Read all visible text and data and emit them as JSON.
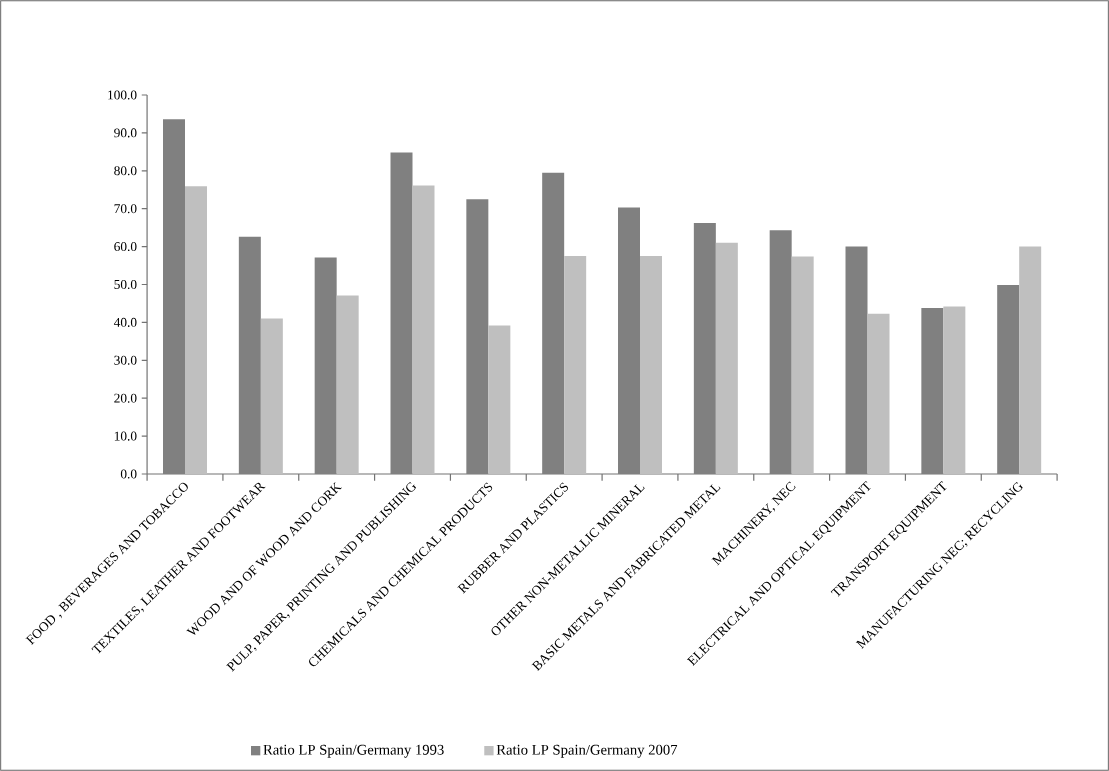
{
  "chart_data": {
    "type": "bar",
    "categories": [
      "FOOD , BEVERAGES AND TOBACCO",
      "TEXTILES, LEATHER AND FOOTWEAR",
      "WOOD AND OF WOOD AND CORK",
      "PULP, PAPER, PRINTING AND PUBLISHING",
      "CHEMICALS AND CHEMICAL PRODUCTS",
      "RUBBER AND PLASTICS",
      "OTHER NON-METALLIC MINERAL",
      "BASIC METALS AND FABRICATED METAL",
      "MACHINERY, NEC",
      "ELECTRICAL AND OPTICAL EQUIPMENT",
      "TRANSPORT EQUIPMENT",
      "MANUFACTURING NEC; RECYCLING"
    ],
    "series": [
      {
        "name": "Ratio LP Spain/Germany 1993",
        "color": "#808080",
        "values": [
          93.6,
          62.6,
          57.1,
          84.8,
          72.5,
          79.5,
          70.3,
          66.2,
          64.3,
          60.0,
          43.8,
          49.9
        ]
      },
      {
        "name": "Ratio LP Spain/Germany 2007",
        "color": "#bfbfbf",
        "values": [
          75.9,
          41.0,
          47.1,
          76.1,
          39.2,
          57.5,
          57.5,
          61.0,
          57.4,
          42.3,
          44.2,
          60.0
        ]
      }
    ],
    "ylim": [
      0,
      100
    ],
    "yticks": [
      {
        "value": 0,
        "label": "0.0"
      },
      {
        "value": 10,
        "label": "10.0"
      },
      {
        "value": 20,
        "label": "20.0"
      },
      {
        "value": 30,
        "label": "30.0"
      },
      {
        "value": 40,
        "label": "40.0"
      },
      {
        "value": 50,
        "label": "50.0"
      },
      {
        "value": 60,
        "label": "60.0"
      },
      {
        "value": 70,
        "label": "70.0"
      },
      {
        "value": 80,
        "label": "80.0"
      },
      {
        "value": 90,
        "label": "90.0"
      },
      {
        "value": 100,
        "label": "100.0"
      }
    ],
    "legend": "bottom"
  }
}
